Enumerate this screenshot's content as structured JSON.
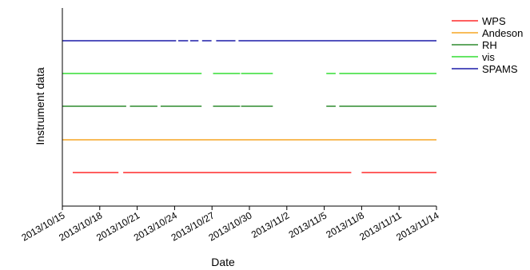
{
  "chart_data": {
    "type": "timeline",
    "xlabel": "Date",
    "ylabel": "Instrument data",
    "x_ticks": [
      "2013/10/15",
      "2013/10/18",
      "2013/10/21",
      "2013/10/24",
      "2013/10/27",
      "2013/10/30",
      "2013/11/2",
      "2013/11/5",
      "2013/11/8",
      "2013/11/11",
      "2013/11/14"
    ],
    "x_range": [
      "2013/10/15",
      "2013/11/14"
    ],
    "legend_position": "top-right",
    "series": [
      {
        "name": "WPS",
        "color": "#ff2a2a",
        "intervals": [
          [
            "2013/10/15 20:00",
            "2013/10/19 12:00"
          ],
          [
            "2013/10/19 21:00",
            "2013/11/7 04:00"
          ],
          [
            "2013/11/8 00:00",
            "2013/11/14"
          ]
        ]
      },
      {
        "name": "Andeson",
        "color": "#f5a623",
        "intervals": [
          [
            "2013/10/15",
            "2013/11/14"
          ]
        ]
      },
      {
        "name": "RH",
        "color": "#2e8b2e",
        "intervals": [
          [
            "2013/10/15",
            "2013/10/20 03:00"
          ],
          [
            "2013/10/20 10:00",
            "2013/10/22 15:00"
          ],
          [
            "2013/10/22 21:00",
            "2013/10/26 04:00"
          ],
          [
            "2013/10/27 02:00",
            "2013/10/29 06:00"
          ],
          [
            "2013/10/29 08:00",
            "2013/10/31 21:00"
          ],
          [
            "2013/11/5 04:00",
            "2013/11/5 22:00"
          ],
          [
            "2013/11/6 05:00",
            "2013/11/14"
          ]
        ]
      },
      {
        "name": "vis",
        "color": "#33dd33",
        "intervals": [
          [
            "2013/10/15",
            "2013/10/26 04:00"
          ],
          [
            "2013/10/27 02:00",
            "2013/10/29 06:00"
          ],
          [
            "2013/10/29 08:00",
            "2013/10/31 21:00"
          ],
          [
            "2013/11/5 04:00",
            "2013/11/5 22:00"
          ],
          [
            "2013/11/6 05:00",
            "2013/11/14"
          ]
        ]
      },
      {
        "name": "SPAMS",
        "color": "#1a1aa8",
        "intervals": [
          [
            "2013/10/15",
            "2013/10/24 03:00"
          ],
          [
            "2013/10/24 07:00",
            "2013/10/25 02:00"
          ],
          [
            "2013/10/25 06:00",
            "2013/10/25 22:00"
          ],
          [
            "2013/10/26 05:00",
            "2013/10/26 23:00"
          ],
          [
            "2013/10/27 08:00",
            "2013/10/28 21:00"
          ],
          [
            "2013/10/29 03:00",
            "2013/11/14"
          ]
        ]
      }
    ]
  }
}
